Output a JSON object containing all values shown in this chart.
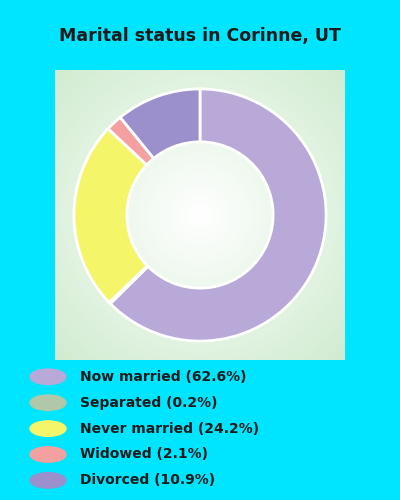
{
  "title": "Marital status in Corinne, UT",
  "slices": [
    62.6,
    0.2,
    24.2,
    2.1,
    10.9
  ],
  "labels": [
    "Now married (62.6%)",
    "Separated (0.2%)",
    "Never married (24.2%)",
    "Widowed (2.1%)",
    "Divorced (10.9%)"
  ],
  "colors": [
    "#b8a9d9",
    "#b0c8a8",
    "#f5f56a",
    "#f4a0a0",
    "#9b8fcc"
  ],
  "bg_cyan": "#00e5ff",
  "bg_chart_center": "#ffffff",
  "bg_chart_edge": "#c8e8c0",
  "title_color": "#1a1a1a",
  "legend_text_color": "#1a1a1a",
  "donut_width": 0.42,
  "startangle": 90,
  "figwidth": 4.0,
  "figheight": 5.0,
  "dpi": 100
}
